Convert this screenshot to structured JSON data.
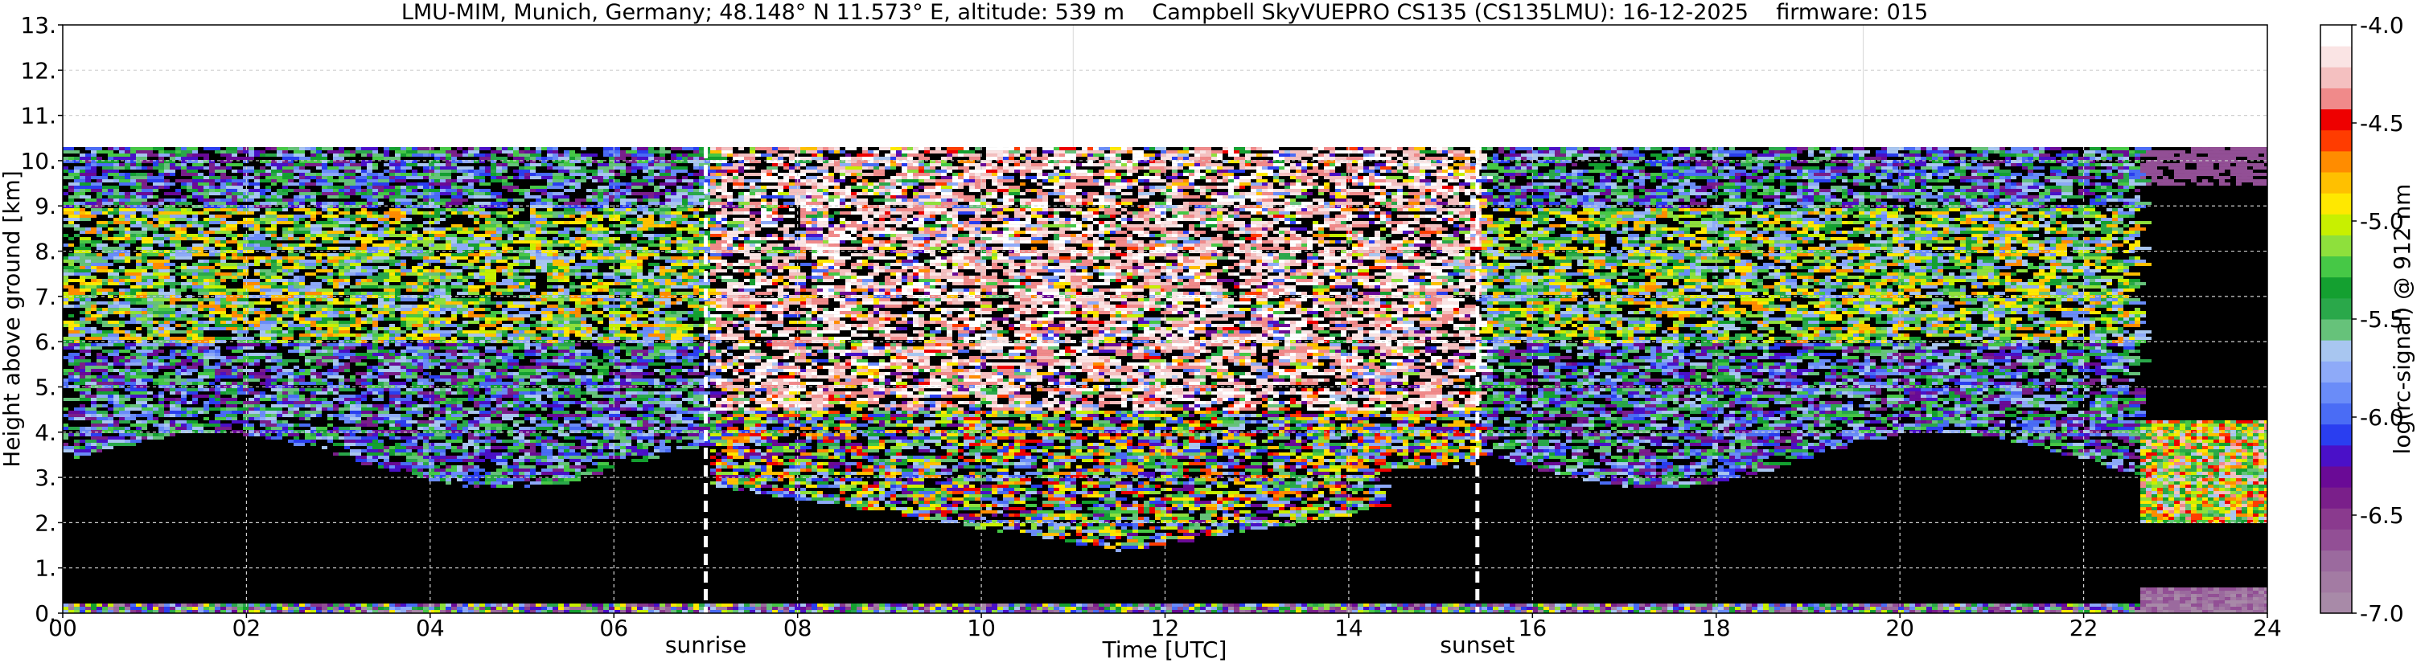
{
  "title": "LMU-MIM, Munich, Germany; 48.148° N 11.573° E, altitude: 539 m    Campbell SkyVUEPRO CS135 (CS135LMU): 16-12-2025    firmware: 015",
  "chart_data": {
    "type": "heatmap",
    "title": "LMU-MIM, Munich, Germany; 48.148° N 11.573° E, altitude: 539 m    Campbell SkyVUEPRO CS135 (CS135LMU): 16-12-2025    firmware: 015",
    "xlabel": "Time [UTC]",
    "ylabel": "Height above ground [km]",
    "xlim": [
      0,
      24
    ],
    "ylim": [
      0,
      13
    ],
    "x_ticks": [
      "00",
      "02",
      "04",
      "06",
      "08",
      "10",
      "12",
      "14",
      "16",
      "18",
      "20",
      "22",
      "24"
    ],
    "y_ticks": [
      "0.",
      "1.",
      "2.",
      "3.",
      "4.",
      "5.",
      "6.",
      "7.",
      "8.",
      "9.",
      "10.",
      "11.",
      "12.",
      "13."
    ],
    "grid": true,
    "data_top_km": 10.3,
    "annotations": [
      {
        "label": "sunrise",
        "time_utc": 7.0
      },
      {
        "label": "sunset",
        "time_utc": 15.4
      }
    ],
    "colorbar": {
      "label": "log(rc-signal) @ 912 nm",
      "range": [
        -7.0,
        -4.0
      ],
      "ticks": [
        "-4.0",
        "-4.5",
        "-5.0",
        "-5.5",
        "-6.0",
        "-6.5",
        "-7.0"
      ],
      "colors": [
        "#a88aa8",
        "#a37ba3",
        "#9b6a9e",
        "#924f95",
        "#8a3a8e",
        "#7a1f8a",
        "#6a0a96",
        "#4a10c8",
        "#2a3ef0",
        "#4a6cf5",
        "#6a8cf8",
        "#8eaaf8",
        "#a8c6f0",
        "#66c27a",
        "#2aa84a",
        "#14a030",
        "#46c846",
        "#8ee03c",
        "#c8f000",
        "#ffe800",
        "#ffc000",
        "#ff8c00",
        "#ff3c00",
        "#ee0000",
        "#f08a8a",
        "#f4c0c0",
        "#fae4e4",
        "#ffffff"
      ]
    }
  }
}
